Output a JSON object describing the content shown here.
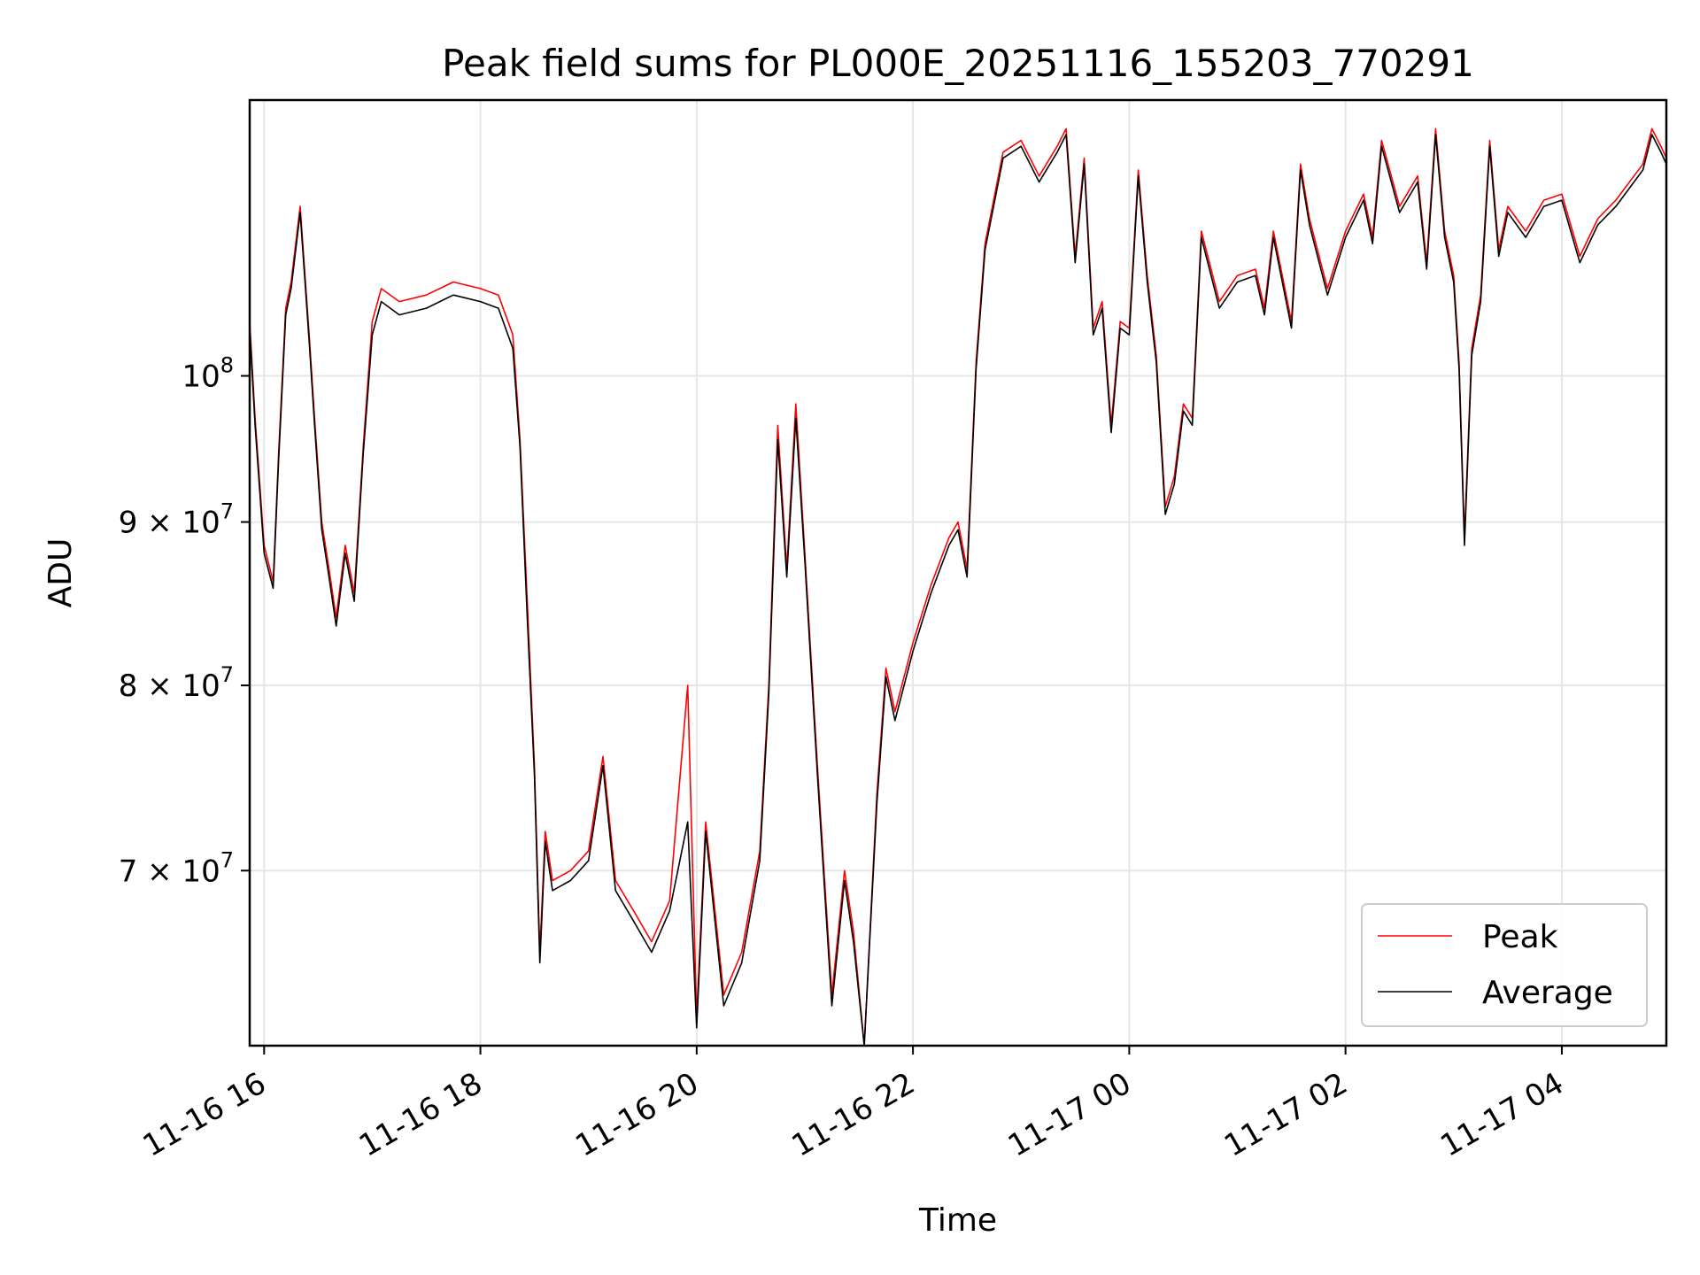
{
  "chart_data": {
    "type": "line",
    "title": "Peak field sums for PL000E_20251116_155203_770291",
    "xlabel": "Time",
    "ylabel": "ADU",
    "y_scale": "log",
    "xlim": [
      "2025-11-16 15:52",
      "2025-11-17 04:58"
    ],
    "ylim": [
      61700000,
      122000000
    ],
    "grid": true,
    "legend_position": "lower-right",
    "x_ticks": [
      "11-16 16",
      "11-16 18",
      "11-16 20",
      "11-16 22",
      "11-17 00",
      "11-17 02",
      "11-17 04"
    ],
    "x_tick_values": [
      "2025-11-16 16:00",
      "2025-11-16 18:00",
      "2025-11-16 20:00",
      "2025-11-16 22:00",
      "2025-11-17 00:00",
      "2025-11-17 02:00",
      "2025-11-17 04:00"
    ],
    "y_ticks": [
      {
        "value": 70000000,
        "mantissa": "7",
        "exponent": "7"
      },
      {
        "value": 80000000,
        "mantissa": "8",
        "exponent": "7"
      },
      {
        "value": 90000000,
        "mantissa": "9",
        "exponent": "7"
      },
      {
        "value": 100000000,
        "mantissa": "",
        "exponent": "8"
      }
    ],
    "y_tick_base": "10",
    "y_tick_times": "×",
    "x": [
      "2025-11-16 15:52",
      "2025-11-16 15:55",
      "2025-11-16 16:00",
      "2025-11-16 16:05",
      "2025-11-16 16:08",
      "2025-11-16 16:12",
      "2025-11-16 16:15",
      "2025-11-16 16:20",
      "2025-11-16 16:25",
      "2025-11-16 16:28",
      "2025-11-16 16:32",
      "2025-11-16 16:36",
      "2025-11-16 16:40",
      "2025-11-16 16:45",
      "2025-11-16 16:50",
      "2025-11-16 16:55",
      "2025-11-16 17:00",
      "2025-11-16 17:05",
      "2025-11-16 17:15",
      "2025-11-16 17:30",
      "2025-11-16 17:45",
      "2025-11-16 18:00",
      "2025-11-16 18:10",
      "2025-11-16 18:18",
      "2025-11-16 18:22",
      "2025-11-16 18:26",
      "2025-11-16 18:30",
      "2025-11-16 18:33",
      "2025-11-16 18:36",
      "2025-11-16 18:40",
      "2025-11-16 18:50",
      "2025-11-16 19:00",
      "2025-11-16 19:08",
      "2025-11-16 19:15",
      "2025-11-16 19:25",
      "2025-11-16 19:35",
      "2025-11-16 19:45",
      "2025-11-16 19:55",
      "2025-11-16 20:00",
      "2025-11-16 20:05",
      "2025-11-16 20:15",
      "2025-11-16 20:25",
      "2025-11-16 20:35",
      "2025-11-16 20:40",
      "2025-11-16 20:45",
      "2025-11-16 20:50",
      "2025-11-16 20:55",
      "2025-11-16 21:00",
      "2025-11-16 21:07",
      "2025-11-16 21:15",
      "2025-11-16 21:22",
      "2025-11-16 21:27",
      "2025-11-16 21:33",
      "2025-11-16 21:40",
      "2025-11-16 21:45",
      "2025-11-16 21:50",
      "2025-11-16 22:00",
      "2025-11-16 22:10",
      "2025-11-16 22:20",
      "2025-11-16 22:25",
      "2025-11-16 22:30",
      "2025-11-16 22:35",
      "2025-11-16 22:40",
      "2025-11-16 22:50",
      "2025-11-16 23:00",
      "2025-11-16 23:10",
      "2025-11-16 23:20",
      "2025-11-16 23:25",
      "2025-11-16 23:30",
      "2025-11-16 23:35",
      "2025-11-16 23:40",
      "2025-11-16 23:45",
      "2025-11-16 23:50",
      "2025-11-16 23:55",
      "2025-11-17 00:00",
      "2025-11-17 00:05",
      "2025-11-17 00:10",
      "2025-11-17 00:15",
      "2025-11-17 00:20",
      "2025-11-17 00:25",
      "2025-11-17 00:30",
      "2025-11-17 00:35",
      "2025-11-17 00:40",
      "2025-11-17 00:50",
      "2025-11-17 01:00",
      "2025-11-17 01:10",
      "2025-11-17 01:15",
      "2025-11-17 01:20",
      "2025-11-17 01:30",
      "2025-11-17 01:35",
      "2025-11-17 01:40",
      "2025-11-17 01:50",
      "2025-11-17 02:00",
      "2025-11-17 02:10",
      "2025-11-17 02:15",
      "2025-11-17 02:20",
      "2025-11-17 02:30",
      "2025-11-17 02:40",
      "2025-11-17 02:45",
      "2025-11-17 02:50",
      "2025-11-17 02:55",
      "2025-11-17 03:00",
      "2025-11-17 03:03",
      "2025-11-17 03:06",
      "2025-11-17 03:10",
      "2025-11-17 03:15",
      "2025-11-17 03:20",
      "2025-11-17 03:25",
      "2025-11-17 03:30",
      "2025-11-17 03:40",
      "2025-11-17 03:50",
      "2025-11-17 04:00",
      "2025-11-17 04:10",
      "2025-11-17 04:20",
      "2025-11-17 04:30",
      "2025-11-17 04:40",
      "2025-11-17 04:45",
      "2025-11-17 04:50",
      "2025-11-17 04:55",
      "2025-11-17 04:58"
    ],
    "series": [
      {
        "name": "Peak",
        "color": "#ff0000",
        "values": [
          104000000,
          97000000,
          88500000,
          86200000,
          94500000,
          105000000,
          107000000,
          113000000,
          103000000,
          97000000,
          90000000,
          87000000,
          84000000,
          88500000,
          85500000,
          95000000,
          104000000,
          106500000,
          105500000,
          106000000,
          107000000,
          106500000,
          106000000,
          103000000,
          95500000,
          85000000,
          75500000,
          66000000,
          72000000,
          69500000,
          70000000,
          71000000,
          76000000,
          69500000,
          68000000,
          66500000,
          68500000,
          80000000,
          63000000,
          72500000,
          64000000,
          66000000,
          71000000,
          80000000,
          96500000,
          87000000,
          98000000,
          88000000,
          75500000,
          64000000,
          70000000,
          67000000,
          61700000,
          74000000,
          81000000,
          78500000,
          82500000,
          86000000,
          89000000,
          90000000,
          87000000,
          101000000,
          110000000,
          117500000,
          118500000,
          115500000,
          118000000,
          119500000,
          109000000,
          117000000,
          103500000,
          105500000,
          96500000,
          104000000,
          103500000,
          116000000,
          107500000,
          101500000,
          91000000,
          93000000,
          98000000,
          97000000,
          111000000,
          105500000,
          107500000,
          108000000,
          105000000,
          111000000,
          104000000,
          116500000,
          112000000,
          106500000,
          111000000,
          114000000,
          110500000,
          118500000,
          113000000,
          115500000,
          108500000,
          119500000,
          111000000,
          107500000,
          101000000,
          89000000,
          102000000,
          106000000,
          118500000,
          109500000,
          113000000,
          111000000,
          113500000,
          114000000,
          109000000,
          112000000,
          113500000,
          115500000,
          116500000,
          119500000,
          118000000,
          117000000
        ]
      },
      {
        "name": "Average",
        "color": "#000000",
        "values": [
          103500000,
          96500000,
          88000000,
          85800000,
          94000000,
          104500000,
          106500000,
          112500000,
          102500000,
          96500000,
          89500000,
          86500000,
          83500000,
          88000000,
          85000000,
          94500000,
          103000000,
          105500000,
          104500000,
          105000000,
          106000000,
          105500000,
          105000000,
          102000000,
          95000000,
          84000000,
          75000000,
          65500000,
          71500000,
          69000000,
          69500000,
          70500000,
          75500000,
          69000000,
          67500000,
          66000000,
          68000000,
          72500000,
          62500000,
          72000000,
          63500000,
          65500000,
          70500000,
          79500000,
          95500000,
          86500000,
          97000000,
          87500000,
          75000000,
          63500000,
          69500000,
          66500000,
          61700000,
          73500000,
          80500000,
          78000000,
          82000000,
          85500000,
          88500000,
          89500000,
          86500000,
          100500000,
          109500000,
          117000000,
          118000000,
          115000000,
          117500000,
          119000000,
          108500000,
          116500000,
          103000000,
          105000000,
          96000000,
          103500000,
          103000000,
          115500000,
          107000000,
          101000000,
          90500000,
          92500000,
          97500000,
          96500000,
          110500000,
          105000000,
          107000000,
          107500000,
          104500000,
          110500000,
          103500000,
          116000000,
          111500000,
          106000000,
          110500000,
          113500000,
          110000000,
          118000000,
          112500000,
          115000000,
          108000000,
          119000000,
          110500000,
          107000000,
          100500000,
          88500000,
          101500000,
          105500000,
          118000000,
          109000000,
          112500000,
          110500000,
          113000000,
          113500000,
          108500000,
          111500000,
          113000000,
          115000000,
          116000000,
          119000000,
          117500000,
          116500000
        ]
      }
    ]
  }
}
